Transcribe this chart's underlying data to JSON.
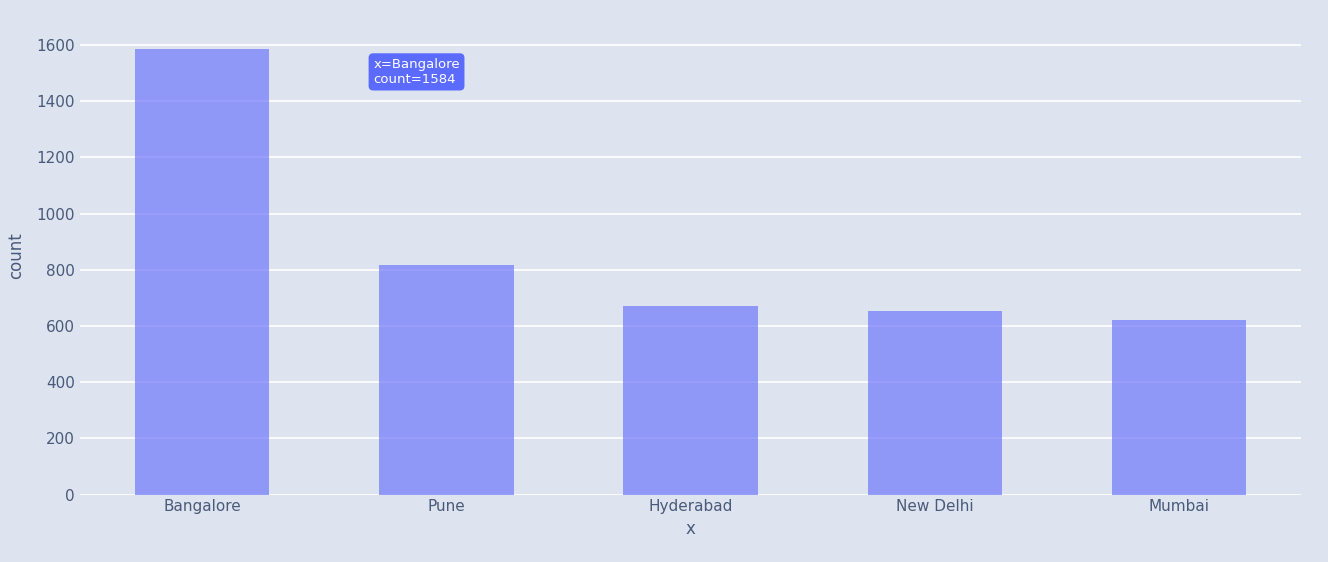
{
  "categories": [
    "Bangalore",
    "Pune",
    "Hyderabad",
    "New Delhi",
    "Mumbai"
  ],
  "values": [
    1584,
    818,
    672,
    655,
    622
  ],
  "bar_color": [
    0.44,
    0.47,
    0.98,
    0.7
  ],
  "background_color": "#dde4f0",
  "axes_bg_color": "#dde4f0",
  "xlabel": "x",
  "ylabel": "count",
  "ylim": [
    0,
    1700
  ],
  "yticks": [
    0,
    200,
    400,
    600,
    800,
    1000,
    1200,
    1400,
    1600
  ],
  "tooltip_text_line1": "x=Bangalore",
  "tooltip_text_line2": "count=1584",
  "tooltip_bg": "#5c6bff",
  "tooltip_text_color": "white",
  "grid_color": "white",
  "label_fontsize": 12,
  "tick_fontsize": 11
}
